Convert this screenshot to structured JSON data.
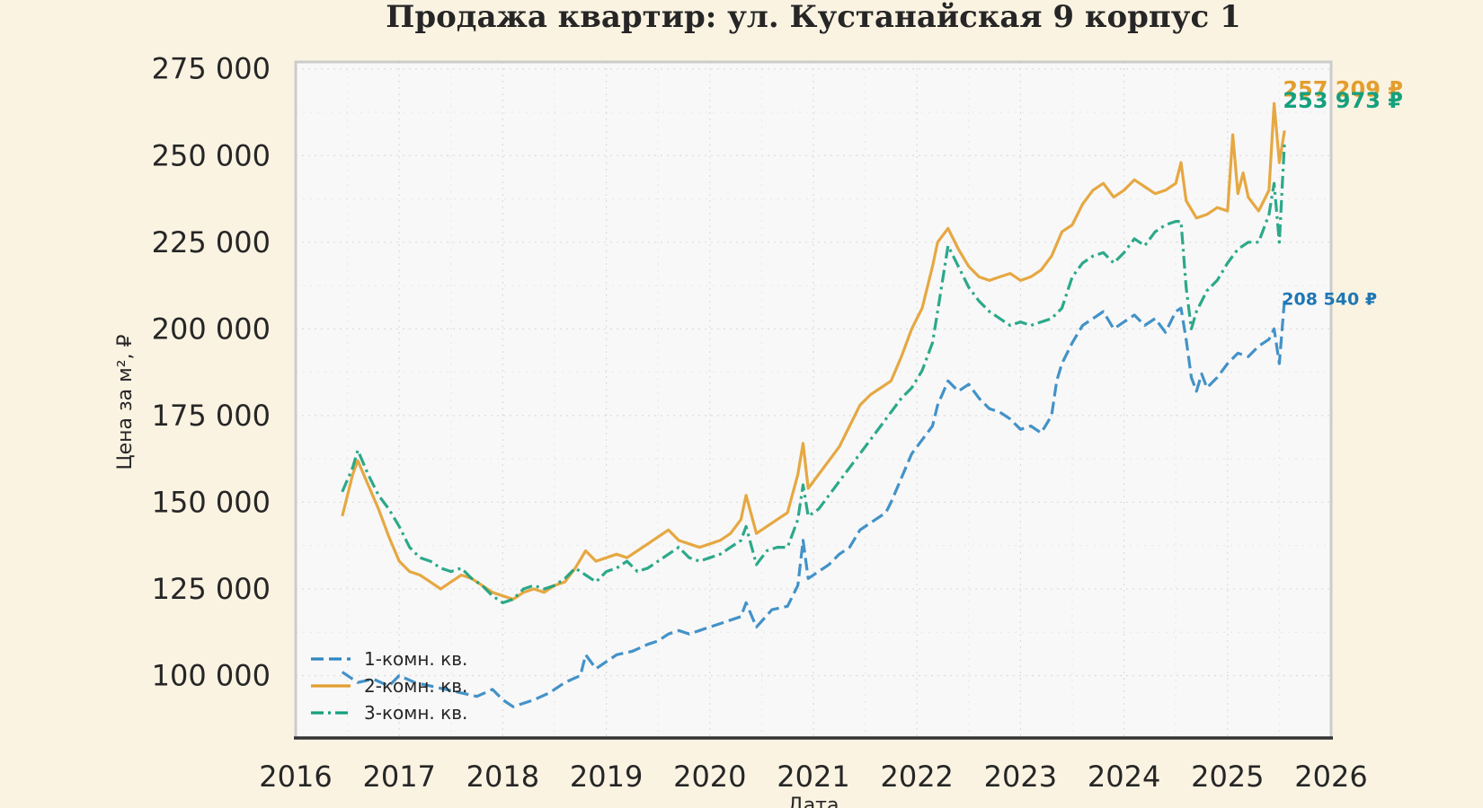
{
  "chart_data": {
    "type": "line",
    "title": "Продажа квартир: ул. Кустанайская 9 корпус 1",
    "xlabel": "Дата",
    "ylabel": "Цена за м², ₽",
    "xlim": [
      2016.0,
      2026.0
    ],
    "ylim": [
      82000,
      277000
    ],
    "x_ticks": [
      2016,
      2017,
      2018,
      2019,
      2020,
      2021,
      2022,
      2023,
      2024,
      2025,
      2026
    ],
    "y_ticks": [
      100000,
      125000,
      150000,
      175000,
      200000,
      225000,
      250000,
      275000
    ],
    "y_tick_labels": [
      "100 000",
      "125 000",
      "150 000",
      "175 000",
      "200 000",
      "225 000",
      "250 000",
      "275 000"
    ],
    "grid": true,
    "legend_position": "lower-left",
    "series": [
      {
        "name": "1-комн. кв.",
        "color": "#2f86c2",
        "line_style": "dashed",
        "end_label": "208 540 ₽",
        "end_label_color": "#1f77b4",
        "x": [
          2016.45,
          2016.6,
          2016.75,
          2016.9,
          2017.0,
          2017.15,
          2017.3,
          2017.45,
          2017.6,
          2017.75,
          2017.9,
          2018.0,
          2018.1,
          2018.2,
          2018.3,
          2018.45,
          2018.6,
          2018.75,
          2018.8,
          2018.9,
          2019.0,
          2019.1,
          2019.25,
          2019.4,
          2019.5,
          2019.6,
          2019.7,
          2019.8,
          2019.9,
          2020.0,
          2020.1,
          2020.2,
          2020.3,
          2020.35,
          2020.45,
          2020.6,
          2020.75,
          2020.85,
          2020.9,
          2020.95,
          2021.05,
          2021.15,
          2021.25,
          2021.35,
          2021.45,
          2021.6,
          2021.7,
          2021.75,
          2021.85,
          2021.95,
          2022.05,
          2022.15,
          2022.2,
          2022.3,
          2022.4,
          2022.5,
          2022.6,
          2022.7,
          2022.8,
          2022.9,
          2023.0,
          2023.1,
          2023.2,
          2023.3,
          2023.35,
          2023.4,
          2023.5,
          2023.6,
          2023.7,
          2023.8,
          2023.9,
          2024.0,
          2024.1,
          2024.2,
          2024.3,
          2024.4,
          2024.5,
          2024.55,
          2024.6,
          2024.65,
          2024.7,
          2024.75,
          2024.8,
          2024.9,
          2025.0,
          2025.1,
          2025.2,
          2025.3,
          2025.4,
          2025.45,
          2025.5,
          2025.55
        ],
        "y": [
          101000,
          98000,
          99000,
          97000,
          100000,
          98000,
          97000,
          96000,
          95000,
          94000,
          96000,
          93000,
          91000,
          92000,
          93000,
          95000,
          98000,
          100000,
          106000,
          102000,
          104000,
          106000,
          107000,
          109000,
          110000,
          112000,
          113000,
          112000,
          113000,
          114000,
          115000,
          116000,
          117000,
          121000,
          114000,
          119000,
          120000,
          126000,
          139000,
          128000,
          130000,
          132000,
          135000,
          137000,
          142000,
          145000,
          147000,
          150000,
          157000,
          164000,
          168000,
          172000,
          178000,
          185000,
          182000,
          184000,
          180000,
          177000,
          176000,
          174000,
          171000,
          172000,
          170000,
          175000,
          185000,
          190000,
          196000,
          201000,
          203000,
          205000,
          200000,
          202000,
          204000,
          201000,
          203000,
          199000,
          205000,
          206000,
          197000,
          186000,
          182000,
          187000,
          183000,
          186000,
          190000,
          193000,
          192000,
          195000,
          197000,
          200000,
          190000,
          208540
        ]
      },
      {
        "name": "2-комн. кв.",
        "color": "#e39e2e",
        "line_style": "solid",
        "end_label": "257 209 ₽",
        "end_label_color": "#e39e2e",
        "x": [
          2016.45,
          2016.55,
          2016.6,
          2016.7,
          2016.8,
          2016.9,
          2017.0,
          2017.1,
          2017.2,
          2017.3,
          2017.4,
          2017.5,
          2017.6,
          2017.7,
          2017.8,
          2017.9,
          2018.0,
          2018.1,
          2018.2,
          2018.3,
          2018.4,
          2018.5,
          2018.6,
          2018.7,
          2018.8,
          2018.9,
          2019.0,
          2019.1,
          2019.2,
          2019.3,
          2019.4,
          2019.5,
          2019.6,
          2019.7,
          2019.8,
          2019.9,
          2020.0,
          2020.1,
          2020.2,
          2020.3,
          2020.35,
          2020.45,
          2020.55,
          2020.65,
          2020.75,
          2020.85,
          2020.9,
          2020.95,
          2021.05,
          2021.15,
          2021.25,
          2021.35,
          2021.45,
          2021.55,
          2021.65,
          2021.75,
          2021.85,
          2021.95,
          2022.05,
          2022.15,
          2022.2,
          2022.3,
          2022.4,
          2022.5,
          2022.6,
          2022.7,
          2022.8,
          2022.9,
          2023.0,
          2023.1,
          2023.2,
          2023.3,
          2023.4,
          2023.5,
          2023.6,
          2023.7,
          2023.8,
          2023.9,
          2024.0,
          2024.1,
          2024.2,
          2024.3,
          2024.4,
          2024.5,
          2024.55,
          2024.6,
          2024.7,
          2024.8,
          2024.9,
          2025.0,
          2025.05,
          2025.1,
          2025.15,
          2025.2,
          2025.3,
          2025.4,
          2025.45,
          2025.5,
          2025.55
        ],
        "y": [
          146000,
          158000,
          162000,
          155000,
          148000,
          140000,
          133000,
          130000,
          129000,
          127000,
          125000,
          127000,
          129000,
          128000,
          126000,
          124000,
          123000,
          122000,
          124000,
          125000,
          124000,
          126000,
          127000,
          131000,
          136000,
          133000,
          134000,
          135000,
          134000,
          136000,
          138000,
          140000,
          142000,
          139000,
          138000,
          137000,
          138000,
          139000,
          141000,
          145000,
          152000,
          141000,
          143000,
          145000,
          147000,
          158000,
          167000,
          154000,
          158000,
          162000,
          166000,
          172000,
          178000,
          181000,
          183000,
          185000,
          192000,
          200000,
          206000,
          218000,
          225000,
          229000,
          223000,
          218000,
          215000,
          214000,
          215000,
          216000,
          214000,
          215000,
          217000,
          221000,
          228000,
          230000,
          236000,
          240000,
          242000,
          238000,
          240000,
          243000,
          241000,
          239000,
          240000,
          242000,
          248000,
          237000,
          232000,
          233000,
          235000,
          234000,
          256000,
          239000,
          245000,
          238000,
          234000,
          240000,
          265000,
          248000,
          257209
        ]
      },
      {
        "name": "3-комн. кв.",
        "color": "#15a07d",
        "line_style": "dashdot",
        "end_label": "253 973 ₽",
        "end_label_color": "#15a07d",
        "x": [
          2016.45,
          2016.55,
          2016.6,
          2016.7,
          2016.8,
          2016.9,
          2017.0,
          2017.1,
          2017.2,
          2017.3,
          2017.4,
          2017.5,
          2017.6,
          2017.7,
          2017.8,
          2017.9,
          2018.0,
          2018.1,
          2018.2,
          2018.3,
          2018.4,
          2018.5,
          2018.6,
          2018.7,
          2018.8,
          2018.9,
          2019.0,
          2019.1,
          2019.2,
          2019.3,
          2019.4,
          2019.5,
          2019.6,
          2019.7,
          2019.8,
          2019.9,
          2020.0,
          2020.1,
          2020.2,
          2020.3,
          2020.35,
          2020.45,
          2020.55,
          2020.65,
          2020.75,
          2020.85,
          2020.9,
          2020.95,
          2021.05,
          2021.15,
          2021.25,
          2021.35,
          2021.45,
          2021.55,
          2021.65,
          2021.75,
          2021.85,
          2021.95,
          2022.05,
          2022.15,
          2022.2,
          2022.3,
          2022.4,
          2022.5,
          2022.6,
          2022.7,
          2022.8,
          2022.9,
          2023.0,
          2023.1,
          2023.2,
          2023.3,
          2023.4,
          2023.5,
          2023.6,
          2023.7,
          2023.8,
          2023.9,
          2024.0,
          2024.1,
          2024.2,
          2024.3,
          2024.4,
          2024.5,
          2024.55,
          2024.6,
          2024.65,
          2024.7,
          2024.8,
          2024.9,
          2025.0,
          2025.1,
          2025.2,
          2025.3,
          2025.4,
          2025.45,
          2025.5,
          2025.55
        ],
        "y": [
          153000,
          160000,
          165000,
          158000,
          152000,
          148000,
          143000,
          137000,
          134000,
          133000,
          131000,
          130000,
          131000,
          128000,
          126000,
          123000,
          121000,
          122000,
          125000,
          126000,
          125000,
          126000,
          128000,
          131000,
          129000,
          127000,
          130000,
          131000,
          133000,
          130000,
          131000,
          133000,
          135000,
          137000,
          134000,
          133000,
          134000,
          135000,
          137000,
          139000,
          143000,
          132000,
          136000,
          137000,
          137000,
          145000,
          155000,
          146000,
          148000,
          152000,
          156000,
          160000,
          164000,
          168000,
          172000,
          176000,
          180000,
          183000,
          188000,
          196000,
          205000,
          224000,
          218000,
          212000,
          208000,
          205000,
          203000,
          201000,
          202000,
          201000,
          202000,
          203000,
          206000,
          215000,
          219000,
          221000,
          222000,
          219000,
          222000,
          226000,
          224000,
          228000,
          230000,
          231000,
          231000,
          212000,
          200000,
          205000,
          211000,
          214000,
          219000,
          223000,
          225000,
          225000,
          233000,
          242000,
          225000,
          253973
        ]
      }
    ]
  }
}
